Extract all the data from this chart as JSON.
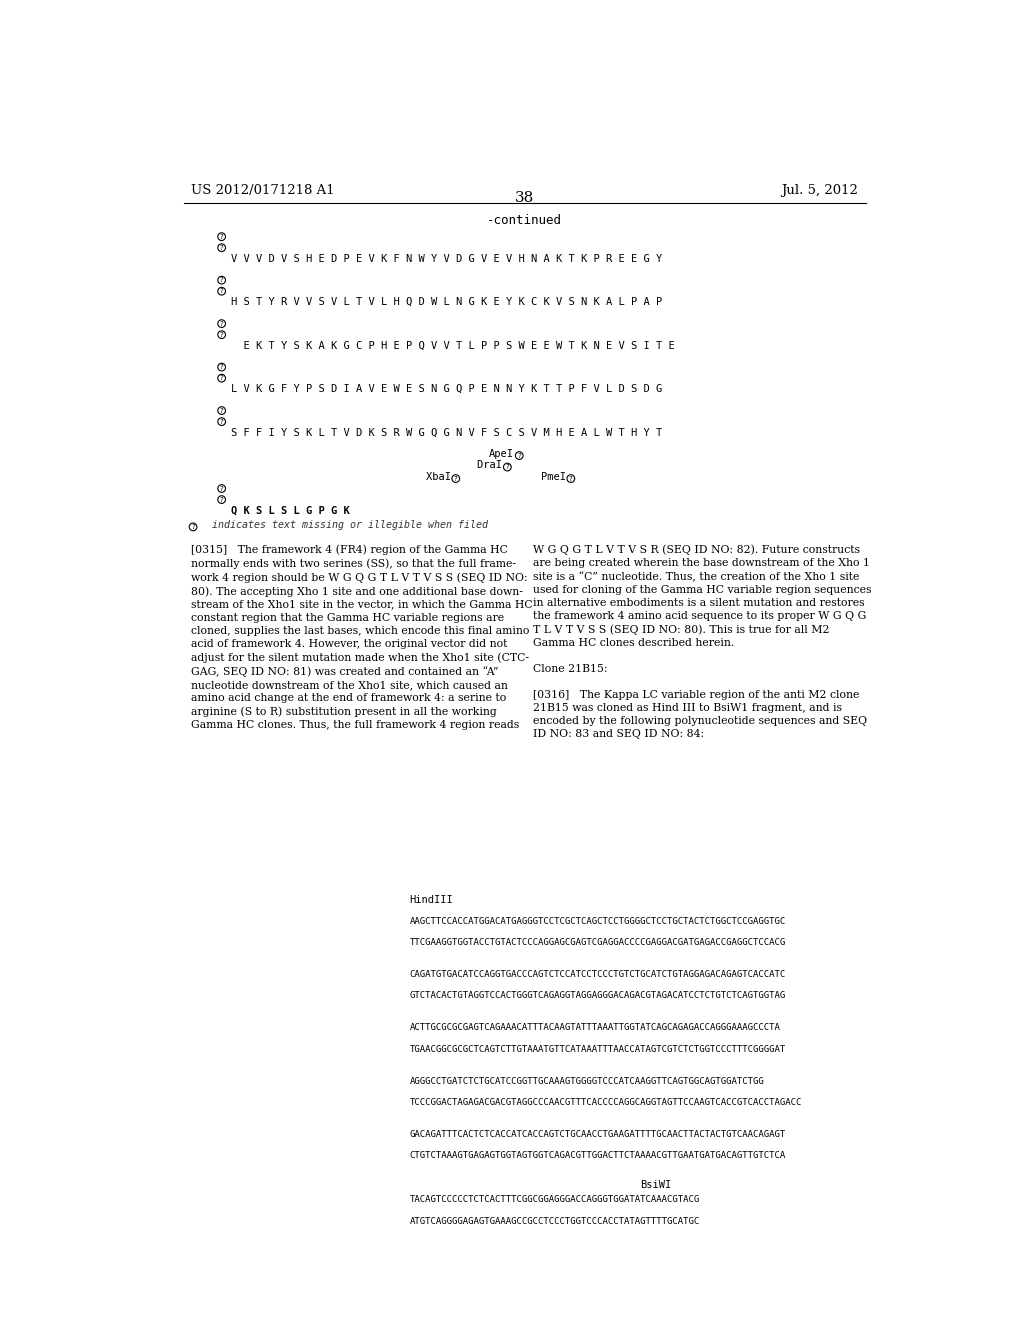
{
  "background_color": "#ffffff",
  "header_left": "US 2012/0171218 A1",
  "header_right": "Jul. 5, 2012",
  "page_number": "38",
  "continued_label": "-continued",
  "body_left_col": "[0315]   The framework 4 (FR4) region of the Gamma HC\nnormally ends with two serines (SS), so that the full frame-\nwork 4 region should be W G Q G T L V T V S S (SEQ ID NO:\n80). The accepting Xho 1 site and one additional base down-\nstream of the Xho1 site in the vector, in which the Gamma HC\nconstant region that the Gamma HC variable regions are\ncloned, supplies the last bases, which encode this final amino\nacid of framework 4. However, the original vector did not\nadjust for the silent mutation made when the Xho1 site (CTC-\nGAG, SEQ ID NO: 81) was created and contained an “A”\nnucleotide downstream of the Xho1 site, which caused an\namino acid change at the end of framework 4: a serine to\narginine (S to R) substitution present in all the working\nGamma HC clones. Thus, the full framework 4 region reads",
  "body_right_col": "W G Q G T L V T V S R (SEQ ID NO: 82). Future constructs\nare being created wherein the base downstream of the Xho 1\nsite is a “C” nucleotide. Thus, the creation of the Xho 1 site\nused for cloning of the Gamma HC variable region sequences\nin alternative embodiments is a silent mutation and restores\nthe framework 4 amino acid sequence to its proper W G Q G\nT L V T V S S (SEQ ID NO: 80). This is true for all M2\nGamma HC clones described herein.\n\nClone 21B15:\n\n[0316]   The Kappa LC variable region of the anti M2 clone\n21B15 was cloned as Hind III to BsiW1 fragment, and is\nencoded by the following polynucleotide sequences and SEQ\nID NO: 83 and SEQ ID NO: 84:",
  "dna_section_label": "HindIII",
  "dna_lines": [
    "AAGCTTCCACCATGGACATGAGGGTCCTCGCTCAGCTCCTGGGGCTCCTGCTACTCTGGCTCCGAGGTGC",
    "TTCGAAGGTGGTACCTGTACTCCCAGGAGCGAGTCGAGGACCCCGAGGACGATGAGACCGAGGCTCCACG",
    "",
    "CAGATGTGACATCCAGGTGACCCAGTCTCCATCCTCCCTGTCTGCATCTGTAGGAGACAGAGTCACCATC",
    "GTCTACACTGTAGGTCCACTGGGTCAGAGGTAGGAGGGACAGACGTAGACATCCTCTGTCTCAGTGGTAG",
    "",
    "ACTTGCGCGCGAGTCAGAAACATTTACAAGTATTTAAATTGGTATCAGCAGAGACCAGGGAAAGCCCTA",
    "TGAACGGCGCGCTCAGTCTTGTAAATGTTCATAAATTTAACCATAGTCGTCTCTGGTCCCTTTCGGGGAT",
    "",
    "AGGGCCTGATCTCTGCATCCGGTTGCAAAGTGGGGTCCCATCAAGGTTCAGTGGCAGTGGATCTGG",
    "TCCCGGACTAGAGACGACGTAGGCCCAACGTTTCACCCCAGGCAGGTAGTTCCAAGTCACCGTCACCTAGACC",
    "",
    "GACAGATTTCACTCTCACCATCACCAGTCTGCAACCTGAAGATTTTGCAACTTACTACTGTCAACAGAGT",
    "CTGTCTAAAGTGAGAGTGGTAGTGGTCAGACGTTGGACTTCTAAAACGTTGAATGATGACAGTTGTCTCA",
    "",
    "BsiWI",
    "TACAGTCCCCCTCTCACTTTCGGCGGAGGGACCAGGGTGGATATCAAACGTACG",
    "ATGTCAGGGGAGAGTGAAAGCCGCCTCCCTGGTCCCACCTATAGTTTTGCATGC"
  ]
}
